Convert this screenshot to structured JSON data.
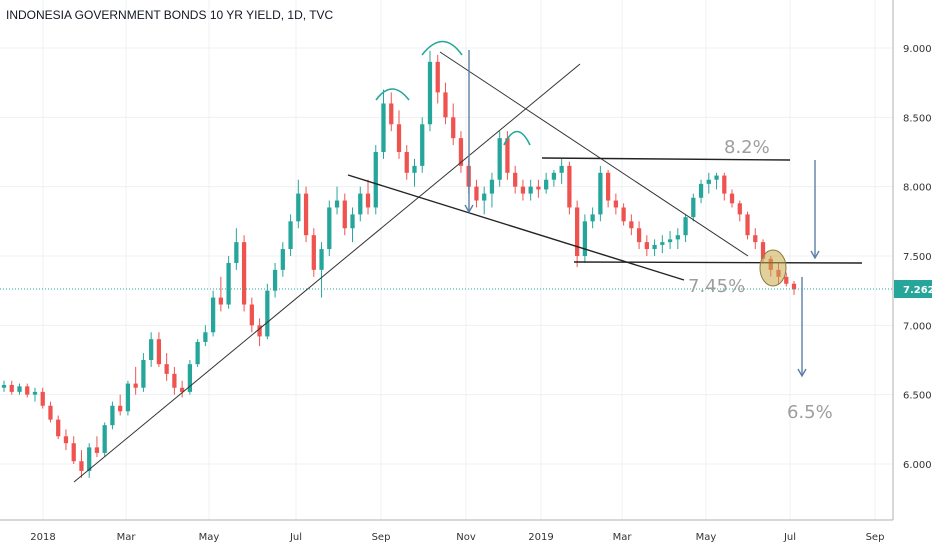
{
  "chart_data": {
    "type": "candlestick",
    "title": "INDONESIA GOVERNMENT BONDS 10 YR YIELD, 1D, TVC",
    "xlabel": "",
    "ylabel": "",
    "ylim": [
      5.73,
      9.3
    ],
    "y_ticks": [
      "9.000",
      "8.500",
      "8.000",
      "7.500",
      "7.000",
      "6.500",
      "6.000"
    ],
    "x_ticks": [
      "2018",
      "Mar",
      "May",
      "Jul",
      "Sep",
      "Nov",
      "2019",
      "Mar",
      "May",
      "Jul",
      "Sep"
    ],
    "last_value": "7.262",
    "last_value_num": 7.262,
    "colors": {
      "up": "#26a69a",
      "down": "#ef5350",
      "last": "#26a69a",
      "lines": "#333333",
      "arrows": "#5b7fa6",
      "annotation": "#9e9e9e",
      "highlight": "#c8a94a"
    },
    "series": [
      {
        "values": [
          [
            6.55,
            6.6,
            6.52,
            6.57
          ],
          [
            6.57,
            6.6,
            6.5,
            6.52
          ],
          [
            6.52,
            6.58,
            6.5,
            6.56
          ],
          [
            6.56,
            6.58,
            6.48,
            6.5
          ],
          [
            6.5,
            6.55,
            6.45,
            6.52
          ],
          [
            6.52,
            6.55,
            6.4,
            6.42
          ],
          [
            6.42,
            6.45,
            6.3,
            6.32
          ],
          [
            6.32,
            6.35,
            6.18,
            6.2
          ],
          [
            6.2,
            6.25,
            6.1,
            6.15
          ],
          [
            6.15,
            6.2,
            6.0,
            6.02
          ],
          [
            6.02,
            6.1,
            5.9,
            5.95
          ],
          [
            5.95,
            6.15,
            5.9,
            6.12
          ],
          [
            6.12,
            6.2,
            6.05,
            6.08
          ],
          [
            6.08,
            6.3,
            6.05,
            6.28
          ],
          [
            6.28,
            6.45,
            6.25,
            6.42
          ],
          [
            6.42,
            6.5,
            6.35,
            6.38
          ],
          [
            6.38,
            6.6,
            6.35,
            6.58
          ],
          [
            6.58,
            6.7,
            6.5,
            6.55
          ],
          [
            6.55,
            6.8,
            6.52,
            6.75
          ],
          [
            6.75,
            6.95,
            6.7,
            6.9
          ],
          [
            6.9,
            6.95,
            6.7,
            6.72
          ],
          [
            6.72,
            6.8,
            6.6,
            6.65
          ],
          [
            6.65,
            6.7,
            6.5,
            6.55
          ],
          [
            6.55,
            6.6,
            6.48,
            6.52
          ],
          [
            6.52,
            6.75,
            6.5,
            6.72
          ],
          [
            6.72,
            6.9,
            6.7,
            6.88
          ],
          [
            6.88,
            7.0,
            6.85,
            6.95
          ],
          [
            6.95,
            7.25,
            6.92,
            7.2
          ],
          [
            7.2,
            7.35,
            7.1,
            7.15
          ],
          [
            7.15,
            7.5,
            7.12,
            7.45
          ],
          [
            7.45,
            7.7,
            7.4,
            7.6
          ],
          [
            7.6,
            7.65,
            7.1,
            7.15
          ],
          [
            7.15,
            7.2,
            6.95,
            7.0
          ],
          [
            7.0,
            7.05,
            6.85,
            6.92
          ],
          [
            6.92,
            7.3,
            6.9,
            7.25
          ],
          [
            7.25,
            7.45,
            7.2,
            7.4
          ],
          [
            7.4,
            7.6,
            7.35,
            7.55
          ],
          [
            7.55,
            7.8,
            7.5,
            7.75
          ],
          [
            7.75,
            8.05,
            7.7,
            7.95
          ],
          [
            7.95,
            8.0,
            7.6,
            7.65
          ],
          [
            7.65,
            7.7,
            7.35,
            7.4
          ],
          [
            7.4,
            7.6,
            7.2,
            7.55
          ],
          [
            7.55,
            7.9,
            7.5,
            7.85
          ],
          [
            7.85,
            8.0,
            7.8,
            7.9
          ],
          [
            7.9,
            7.95,
            7.65,
            7.7
          ],
          [
            7.7,
            7.85,
            7.6,
            7.8
          ],
          [
            7.8,
            8.0,
            7.75,
            7.95
          ],
          [
            7.95,
            8.05,
            7.8,
            7.85
          ],
          [
            7.85,
            8.3,
            7.8,
            8.25
          ],
          [
            8.25,
            8.7,
            8.2,
            8.6
          ],
          [
            8.6,
            8.68,
            8.4,
            8.45
          ],
          [
            8.45,
            8.55,
            8.2,
            8.25
          ],
          [
            8.25,
            8.3,
            8.05,
            8.1
          ],
          [
            8.1,
            8.2,
            8.0,
            8.15
          ],
          [
            8.15,
            8.5,
            8.1,
            8.45
          ],
          [
            8.45,
            8.98,
            8.4,
            8.9
          ],
          [
            8.9,
            8.95,
            8.6,
            8.68
          ],
          [
            8.68,
            8.75,
            8.45,
            8.5
          ],
          [
            8.5,
            8.6,
            8.3,
            8.35
          ],
          [
            8.35,
            8.4,
            8.1,
            8.15
          ],
          [
            8.15,
            8.2,
            7.95,
            8.0
          ],
          [
            8.0,
            8.05,
            7.85,
            7.9
          ],
          [
            7.9,
            8.0,
            7.8,
            7.95
          ],
          [
            7.95,
            8.1,
            7.85,
            8.05
          ],
          [
            8.05,
            8.4,
            8.0,
            8.35
          ],
          [
            8.35,
            8.4,
            8.05,
            8.1
          ],
          [
            8.1,
            8.15,
            7.95,
            8.0
          ],
          [
            8.0,
            8.05,
            7.9,
            7.95
          ],
          [
            7.95,
            8.05,
            7.9,
            8.0
          ],
          [
            8.0,
            8.05,
            7.92,
            7.98
          ],
          [
            7.98,
            8.1,
            7.95,
            8.05
          ],
          [
            8.05,
            8.12,
            8.0,
            8.1
          ],
          [
            8.1,
            8.2,
            8.02,
            8.15
          ],
          [
            8.15,
            8.18,
            7.8,
            7.85
          ],
          [
            7.85,
            7.9,
            7.42,
            7.5
          ],
          [
            7.5,
            7.8,
            7.45,
            7.75
          ],
          [
            7.75,
            7.85,
            7.7,
            7.8
          ],
          [
            7.8,
            8.15,
            7.75,
            8.1
          ],
          [
            8.1,
            8.12,
            7.85,
            7.9
          ],
          [
            7.9,
            7.95,
            7.8,
            7.85
          ],
          [
            7.85,
            7.88,
            7.72,
            7.75
          ],
          [
            7.75,
            7.8,
            7.65,
            7.7
          ],
          [
            7.7,
            7.75,
            7.55,
            7.6
          ],
          [
            7.6,
            7.65,
            7.5,
            7.55
          ],
          [
            7.55,
            7.62,
            7.5,
            7.58
          ],
          [
            7.58,
            7.65,
            7.52,
            7.6
          ],
          [
            7.6,
            7.68,
            7.55,
            7.62
          ],
          [
            7.62,
            7.7,
            7.55,
            7.65
          ],
          [
            7.65,
            7.8,
            7.6,
            7.78
          ],
          [
            7.78,
            7.95,
            7.75,
            7.92
          ],
          [
            7.92,
            8.05,
            7.88,
            8.02
          ],
          [
            8.02,
            8.1,
            7.95,
            8.05
          ],
          [
            8.05,
            8.1,
            7.98,
            8.08
          ],
          [
            8.08,
            8.1,
            7.9,
            7.95
          ],
          [
            7.95,
            7.98,
            7.85,
            7.88
          ],
          [
            7.88,
            7.9,
            7.75,
            7.8
          ],
          [
            7.8,
            7.82,
            7.62,
            7.65
          ],
          [
            7.65,
            7.7,
            7.55,
            7.6
          ],
          [
            7.6,
            7.62,
            7.45,
            7.48
          ],
          [
            7.48,
            7.5,
            7.35,
            7.4
          ],
          [
            7.4,
            7.45,
            7.3,
            7.35
          ],
          [
            7.35,
            7.38,
            7.28,
            7.3
          ],
          [
            7.3,
            7.32,
            7.22,
            7.26
          ]
        ]
      }
    ],
    "annotations": [
      "8.2%",
      "7.45%",
      "6.5%"
    ]
  }
}
